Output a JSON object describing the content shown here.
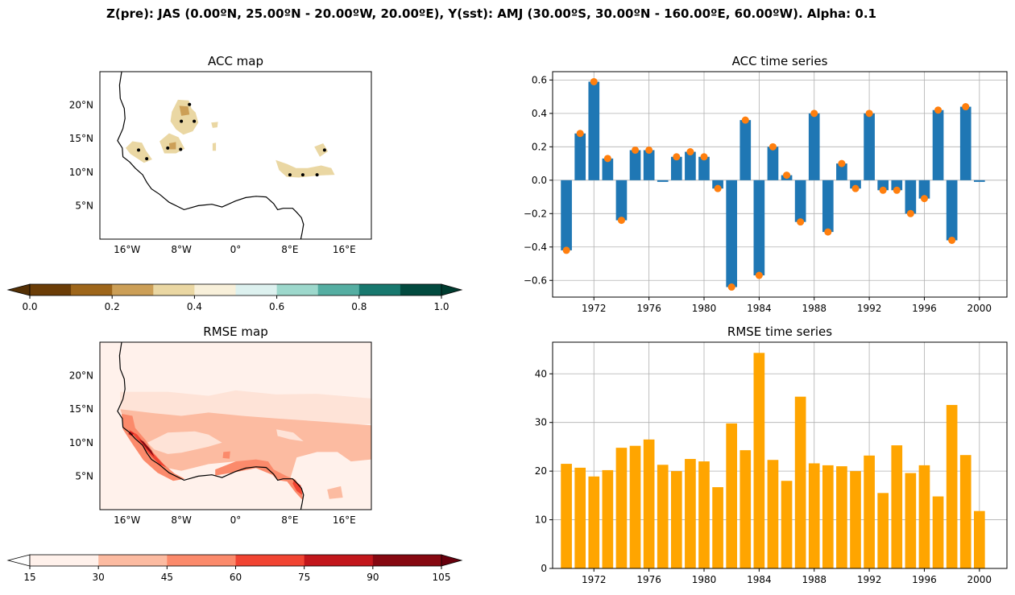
{
  "figure": {
    "suptitle": "Z(pre): JAS (0.00ºN, 25.00ºN - 20.00ºW, 20.00ºE), Y(sst): AMJ (30.00ºS, 30.00ºN - 160.00ºE, 60.00ºW). Alpha: 0.1"
  },
  "chart_data": [
    {
      "id": "acc_map",
      "type": "heatmap",
      "title": "ACC map",
      "xticks": [
        "16°W",
        "8°W",
        "0°",
        "8°E",
        "16°E"
      ],
      "xtick_values": [
        -16,
        -8,
        0,
        8,
        16
      ],
      "yticks": [
        "5°N",
        "10°N",
        "15°N",
        "20°N"
      ],
      "ytick_values": [
        5,
        10,
        15,
        20
      ],
      "xlim": [
        -20,
        20
      ],
      "ylim": [
        0,
        25
      ],
      "colorbar": {
        "ticks": [
          "0.0",
          "0.2",
          "0.4",
          "0.6",
          "0.8",
          "1.0"
        ],
        "levels": [
          0,
          0.1,
          0.2,
          0.3,
          0.4,
          0.5,
          0.6,
          0.7,
          0.8,
          0.9,
          1.0
        ],
        "colors": [
          "#6b3d07",
          "#9e661b",
          "#cc9f57",
          "#ead7a3",
          "#f8f0da",
          "#ddf1ef",
          "#9dd8cc",
          "#55aea2",
          "#18786e",
          "#024a3f"
        ],
        "under": "#543005",
        "over": "#003c30"
      }
    },
    {
      "id": "acc_ts",
      "type": "bar",
      "title": "ACC time series",
      "xticks": [
        "1972",
        "1976",
        "1980",
        "1984",
        "1988",
        "1992",
        "1996",
        "2000"
      ],
      "xlim": [
        1969,
        2002
      ],
      "ylim": [
        -0.7,
        0.65
      ],
      "yticks": [
        "−0.6",
        "−0.4",
        "−0.2",
        "0.0",
        "0.2",
        "0.4",
        "0.6"
      ],
      "ytick_values": [
        -0.6,
        -0.4,
        -0.2,
        0,
        0.2,
        0.4,
        0.6
      ],
      "grid": true,
      "x": [
        1970,
        1971,
        1972,
        1973,
        1974,
        1975,
        1976,
        1977,
        1978,
        1979,
        1980,
        1981,
        1982,
        1983,
        1984,
        1985,
        1986,
        1987,
        1988,
        1989,
        1990,
        1991,
        1992,
        1993,
        1994,
        1995,
        1996,
        1997,
        1998,
        1999,
        2000
      ],
      "values": [
        -0.42,
        0.28,
        0.59,
        0.13,
        -0.24,
        0.18,
        0.18,
        -0.01,
        0.14,
        0.17,
        0.14,
        -0.05,
        -0.64,
        0.36,
        -0.57,
        0.2,
        0.03,
        -0.25,
        0.4,
        -0.31,
        0.1,
        -0.05,
        0.4,
        -0.06,
        -0.06,
        -0.2,
        -0.11,
        0.42,
        -0.36,
        0.44,
        -0.01
      ],
      "markers": [
        -0.42,
        0.28,
        0.59,
        0.13,
        -0.24,
        0.18,
        0.18,
        null,
        0.14,
        0.17,
        0.14,
        -0.05,
        -0.64,
        0.36,
        -0.57,
        0.2,
        0.03,
        -0.25,
        0.4,
        -0.31,
        0.1,
        -0.05,
        0.4,
        -0.06,
        -0.06,
        -0.2,
        -0.11,
        0.42,
        -0.36,
        0.44,
        null
      ],
      "bar_color": "#1f77b4",
      "marker_color": "#ff7f0e"
    },
    {
      "id": "rmse_map",
      "type": "heatmap",
      "title": "RMSE map",
      "xticks": [
        "16°W",
        "8°W",
        "0°",
        "8°E",
        "16°E"
      ],
      "xtick_values": [
        -16,
        -8,
        0,
        8,
        16
      ],
      "yticks": [
        "5°N",
        "10°N",
        "15°N",
        "20°N"
      ],
      "ytick_values": [
        5,
        10,
        15,
        20
      ],
      "xlim": [
        -20,
        20
      ],
      "ylim": [
        0,
        25
      ],
      "colorbar": {
        "ticks": [
          "15",
          "30",
          "45",
          "60",
          "75",
          "90",
          "105"
        ],
        "levels": [
          15,
          30,
          45,
          60,
          75,
          90,
          105
        ],
        "colors": [
          "#fff1eb",
          "#fcbba1",
          "#fb8a6b",
          "#f14432",
          "#c2161b",
          "#860811"
        ],
        "under": "#ffffff",
        "over": "#67000d"
      }
    },
    {
      "id": "rmse_ts",
      "type": "bar",
      "title": "RMSE time series",
      "xticks": [
        "1972",
        "1976",
        "1980",
        "1984",
        "1988",
        "1992",
        "1996",
        "2000"
      ],
      "xlim": [
        1969,
        2002
      ],
      "ylim": [
        0,
        46.5
      ],
      "yticks": [
        "0",
        "10",
        "20",
        "30",
        "40"
      ],
      "ytick_values": [
        0,
        10,
        20,
        30,
        40
      ],
      "grid": true,
      "x": [
        1970,
        1971,
        1972,
        1973,
        1974,
        1975,
        1976,
        1977,
        1978,
        1979,
        1980,
        1981,
        1982,
        1983,
        1984,
        1985,
        1986,
        1987,
        1988,
        1989,
        1990,
        1991,
        1992,
        1993,
        1994,
        1995,
        1996,
        1997,
        1998,
        1999,
        2000
      ],
      "values": [
        21.5,
        20.7,
        18.9,
        20.2,
        24.8,
        25.2,
        26.5,
        21.3,
        20.0,
        22.5,
        22.0,
        16.7,
        29.8,
        24.3,
        44.3,
        22.3,
        18.0,
        35.3,
        21.6,
        21.2,
        21.0,
        20.0,
        23.2,
        15.5,
        25.3,
        19.6,
        21.2,
        14.8,
        33.6,
        23.3,
        11.8
      ],
      "bar_color": "#ffa500"
    }
  ]
}
